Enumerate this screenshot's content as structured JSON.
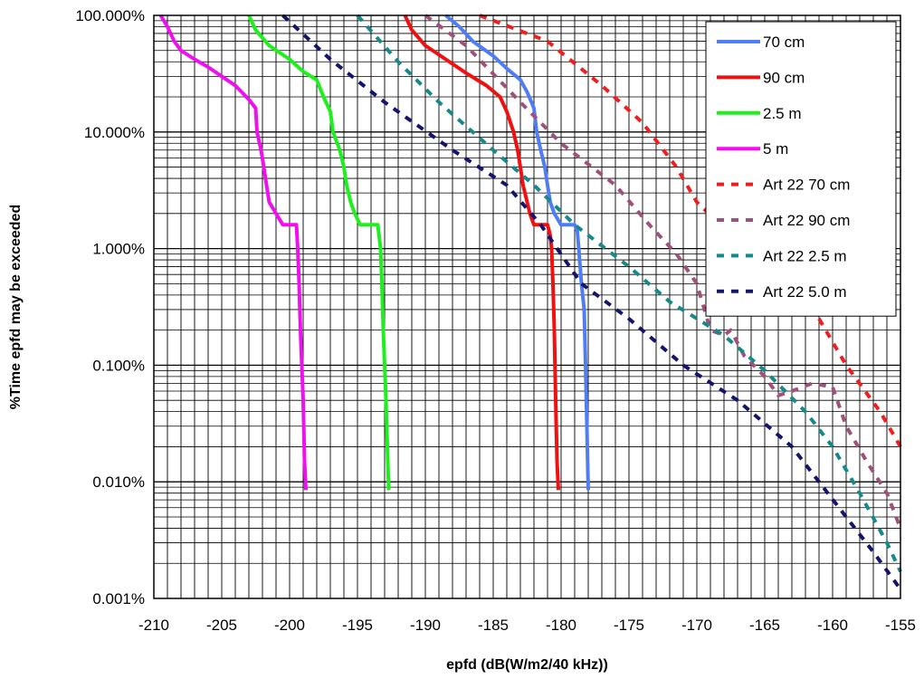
{
  "chart_data": {
    "type": "line",
    "title": "",
    "xlabel": "epfd  (dB(W/m2/40 kHz))",
    "ylabel": "%Time epfd may be exceeded",
    "x_scale": "linear",
    "y_scale": "log",
    "xlim": [
      -210,
      -155
    ],
    "ylim": [
      0.001,
      100
    ],
    "x_ticks": [
      -210,
      -205,
      -200,
      -195,
      -190,
      -185,
      -180,
      -175,
      -170,
      -165,
      -160,
      -155
    ],
    "x_tick_labels": [
      "-210",
      "-205",
      "-200",
      "-195",
      "-190",
      "-185",
      "-180",
      "-175",
      "-170",
      "-165",
      "-160",
      "-155"
    ],
    "y_ticks": [
      0.001,
      0.01,
      0.1,
      1,
      10,
      100
    ],
    "y_tick_labels": [
      "0.001%",
      "0.010%",
      "0.100%",
      "1.000%",
      "10.000%",
      "100.000%"
    ],
    "grid": true,
    "legend_position": "top-right",
    "series": [
      {
        "name": "70 cm",
        "color": "#4f7df5",
        "style": "solid",
        "points": [
          [
            -188.5,
            100
          ],
          [
            -187.5,
            80
          ],
          [
            -186.5,
            60
          ],
          [
            -185,
            45
          ],
          [
            -184,
            35
          ],
          [
            -183,
            28
          ],
          [
            -182.5,
            22
          ],
          [
            -182,
            16
          ],
          [
            -181.8,
            10
          ],
          [
            -181.5,
            7
          ],
          [
            -181.2,
            5
          ],
          [
            -181,
            3.5
          ],
          [
            -180.8,
            2.5
          ],
          [
            -180.5,
            2
          ],
          [
            -180,
            1.6
          ],
          [
            -179,
            1.6
          ],
          [
            -178.8,
            1.4
          ],
          [
            -178.7,
            1.0
          ],
          [
            -178.5,
            0.5
          ],
          [
            -178.3,
            0.3
          ],
          [
            -178.2,
            0.1
          ],
          [
            -178.1,
            0.03
          ],
          [
            -178,
            0.0085
          ]
        ]
      },
      {
        "name": "90 cm",
        "color": "#f01010",
        "style": "solid",
        "points": [
          [
            -191.5,
            100
          ],
          [
            -191,
            75
          ],
          [
            -190,
            55
          ],
          [
            -188.5,
            42
          ],
          [
            -187,
            32
          ],
          [
            -185.5,
            25
          ],
          [
            -184.5,
            20
          ],
          [
            -184,
            15
          ],
          [
            -183.5,
            10
          ],
          [
            -183.2,
            7
          ],
          [
            -183,
            5
          ],
          [
            -182.8,
            3.5
          ],
          [
            -182.5,
            2.5
          ],
          [
            -182.3,
            2
          ],
          [
            -182,
            1.6
          ],
          [
            -181,
            1.6
          ],
          [
            -180.8,
            1.3
          ],
          [
            -180.7,
            1.0
          ],
          [
            -180.6,
            0.5
          ],
          [
            -180.5,
            0.2
          ],
          [
            -180.4,
            0.05
          ],
          [
            -180.3,
            0.015
          ],
          [
            -180.2,
            0.0085
          ]
        ]
      },
      {
        "name": "2.5 m",
        "color": "#1ef01e",
        "style": "solid",
        "points": [
          [
            -203,
            100
          ],
          [
            -202.5,
            75
          ],
          [
            -201.5,
            55
          ],
          [
            -200,
            42
          ],
          [
            -199,
            33
          ],
          [
            -198,
            28
          ],
          [
            -197.5,
            20
          ],
          [
            -197,
            15
          ],
          [
            -196.8,
            10
          ],
          [
            -196.3,
            7
          ],
          [
            -196,
            5
          ],
          [
            -195.8,
            3.5
          ],
          [
            -195.5,
            2.5
          ],
          [
            -195.2,
            2
          ],
          [
            -194.8,
            1.6
          ],
          [
            -193.5,
            1.6
          ],
          [
            -193.3,
            1.0
          ],
          [
            -193.2,
            0.5
          ],
          [
            -193.1,
            0.2
          ],
          [
            -193,
            0.1
          ],
          [
            -192.9,
            0.05
          ],
          [
            -192.8,
            0.02
          ],
          [
            -192.7,
            0.0085
          ]
        ]
      },
      {
        "name": "5 m",
        "color": "#ee10ee",
        "style": "solid",
        "points": [
          [
            -209.5,
            100
          ],
          [
            -209,
            80
          ],
          [
            -208.5,
            60
          ],
          [
            -208,
            50
          ],
          [
            -207,
            42
          ],
          [
            -206,
            36
          ],
          [
            -205,
            30
          ],
          [
            -204,
            25
          ],
          [
            -203,
            19
          ],
          [
            -202.5,
            16
          ],
          [
            -202.4,
            10
          ],
          [
            -202.1,
            7
          ],
          [
            -201.9,
            5
          ],
          [
            -201.7,
            3.5
          ],
          [
            -201.5,
            2.5
          ],
          [
            -201,
            2
          ],
          [
            -200.5,
            1.6
          ],
          [
            -199.5,
            1.6
          ],
          [
            -199.4,
            1.0
          ],
          [
            -199.3,
            0.5
          ],
          [
            -199.2,
            0.2
          ],
          [
            -199.1,
            0.1
          ],
          [
            -199,
            0.05
          ],
          [
            -198.9,
            0.015
          ],
          [
            -198.8,
            0.0085
          ]
        ]
      },
      {
        "name": "Art 22 70 cm",
        "color": "#f01e1e",
        "style": "dashed",
        "points": [
          [
            -186,
            100
          ],
          [
            -181,
            60
          ],
          [
            -177,
            25
          ],
          [
            -174,
            12
          ],
          [
            -171.5,
            5
          ],
          [
            -170,
            2.5
          ],
          [
            -168,
            1.5
          ],
          [
            -166,
            0.8
          ],
          [
            -163,
            0.4
          ],
          [
            -161,
            0.25
          ],
          [
            -159,
            0.1
          ],
          [
            -156.5,
            0.04
          ],
          [
            -155,
            0.02
          ]
        ]
      },
      {
        "name": "Art 22 90 cm",
        "color": "#a0507a",
        "style": "dashed",
        "points": [
          [
            -190,
            100
          ],
          [
            -187,
            55
          ],
          [
            -183,
            18
          ],
          [
            -180,
            8
          ],
          [
            -176,
            3.5
          ],
          [
            -173.5,
            1.6
          ],
          [
            -171.5,
            0.9
          ],
          [
            -170,
            0.5
          ],
          [
            -169,
            0.2
          ],
          [
            -168,
            0.18
          ],
          [
            -167.5,
            0.2
          ],
          [
            -166.5,
            0.12
          ],
          [
            -165,
            0.08
          ],
          [
            -164,
            0.055
          ],
          [
            -163,
            0.06
          ],
          [
            -161.5,
            0.07
          ],
          [
            -160,
            0.065
          ],
          [
            -159,
            0.03
          ],
          [
            -157.5,
            0.015
          ],
          [
            -156,
            0.008
          ],
          [
            -155,
            0.004
          ]
        ]
      },
      {
        "name": "Art 22 2.5 m",
        "color": "#168a8a",
        "style": "dashed",
        "points": [
          [
            -195,
            100
          ],
          [
            -192,
            40
          ],
          [
            -189,
            18
          ],
          [
            -185,
            7
          ],
          [
            -182,
            3.5
          ],
          [
            -179,
            1.6
          ],
          [
            -175,
            0.7
          ],
          [
            -172,
            0.35
          ],
          [
            -168,
            0.18
          ],
          [
            -165,
            0.09
          ],
          [
            -162,
            0.04
          ],
          [
            -160,
            0.02
          ],
          [
            -158,
            0.008
          ],
          [
            -156,
            0.003
          ],
          [
            -155,
            0.0017
          ]
        ]
      },
      {
        "name": "Art 22 5.0 m",
        "color": "#14146e",
        "style": "dashed",
        "points": [
          [
            -200.5,
            100
          ],
          [
            -197,
            42
          ],
          [
            -193,
            18
          ],
          [
            -188,
            7
          ],
          [
            -184,
            3.5
          ],
          [
            -181.5,
            1.6
          ],
          [
            -178.5,
            0.5
          ],
          [
            -175,
            0.25
          ],
          [
            -171,
            0.1
          ],
          [
            -167,
            0.05
          ],
          [
            -163,
            0.02
          ],
          [
            -161,
            0.01
          ],
          [
            -159,
            0.005
          ],
          [
            -157,
            0.0025
          ],
          [
            -155,
            0.0012
          ]
        ]
      }
    ]
  }
}
